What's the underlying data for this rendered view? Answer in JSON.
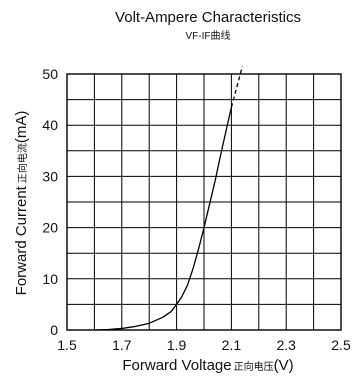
{
  "chart_data": {
    "type": "line",
    "title": "Volt-Ampere Characteristics",
    "subtitle": "VF-IF曲线",
    "xlabel": "Forward Voltage",
    "xlabel_cn": "正向电压",
    "xlabel_unit": "(V)",
    "ylabel": "Forward Current",
    "ylabel_cn": "正向电流",
    "ylabel_unit": "(mA)",
    "xlim": [
      1.5,
      2.5
    ],
    "ylim": [
      0,
      50
    ],
    "x_ticks": [
      "1.5",
      "1.7",
      "1.9",
      "2.1",
      "2.3",
      "2.5"
    ],
    "y_ticks": [
      "0",
      "10",
      "20",
      "30",
      "40",
      "50"
    ],
    "grid": true,
    "series": [
      {
        "style": "solid",
        "x": [
          1.6,
          1.65,
          1.7,
          1.75,
          1.8,
          1.85,
          1.88,
          1.9,
          1.92,
          1.94,
          1.96,
          1.98,
          2.0,
          2.02,
          2.04,
          2.06,
          2.08,
          2.1
        ],
        "y": [
          0.0,
          0.1,
          0.3,
          0.7,
          1.3,
          2.5,
          3.6,
          5.0,
          6.6,
          8.8,
          12.0,
          15.8,
          20.0,
          24.5,
          29.0,
          34.0,
          38.8,
          43.5
        ]
      },
      {
        "style": "dashed",
        "x": [
          2.1,
          2.12,
          2.14
        ],
        "y": [
          43.5,
          47.5,
          51.5
        ]
      }
    ]
  }
}
